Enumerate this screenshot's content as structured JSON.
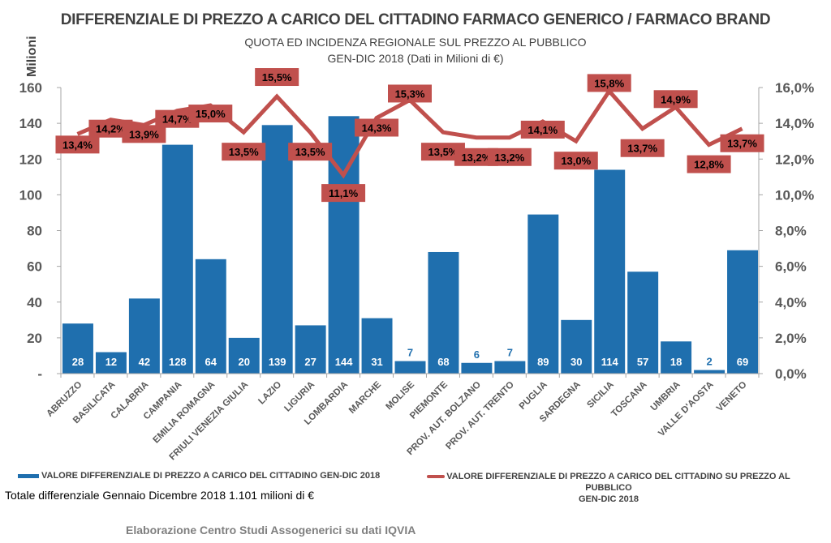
{
  "header": {
    "title": "DIFFERENZIALE DI PREZZO A CARICO DEL CITTADINO FARMACO GENERICO / FARMACO BRAND",
    "subtitle1": "QUOTA ED INCIDENZA REGIONALE SUL PREZZO AL PUBBLICO",
    "subtitle2": "GEN-DIC 2018 (Dati in Milioni di €)"
  },
  "chart_data": {
    "type": "bar",
    "title": "DIFFERENZIALE DI PREZZO A CARICO DEL CITTADINO FARMACO GENERICO / FARMACO BRAND",
    "ylabel": "Milioni",
    "xlabel": "",
    "ylim": [
      0,
      160
    ],
    "y_ticks": [
      "-",
      "20",
      "40",
      "60",
      "80",
      "100",
      "120",
      "140",
      "160"
    ],
    "y_tick_values": [
      0,
      20,
      40,
      60,
      80,
      100,
      120,
      140,
      160
    ],
    "y2lim": [
      0,
      16
    ],
    "y2_ticks": [
      "0,0%",
      "2,0%",
      "4,0%",
      "6,0%",
      "8,0%",
      "10,0%",
      "12,0%",
      "14,0%",
      "16,0%"
    ],
    "y2_tick_values": [
      0,
      2,
      4,
      6,
      8,
      10,
      12,
      14,
      16
    ],
    "grid": false,
    "legend_position": "bottom",
    "categories": [
      "ABRUZZO",
      "BASILICATA",
      "CALABRIA",
      "CAMPANIA",
      "EMILIA ROMAGNA",
      "FRIULI VENEZIA GIULIA",
      "LAZIO",
      "LIGURIA",
      "LOMBARDIA",
      "MARCHE",
      "MOLISE",
      "PIEMONTE",
      "PROV. AUT. BOLZANO",
      "PROV. AUT. TRENTO",
      "PUGLIA",
      "SARDEGNA",
      "SICILIA",
      "TOSCANA",
      "UMBRIA",
      "VALLE D'AOSTA",
      "VENETO"
    ],
    "series": [
      {
        "name": "VALORE DIFFERENZIALE DI PREZZO A CARICO DEL CITTADINO GEN-DIC 2018",
        "type": "bar",
        "axis": "left",
        "color": "#1f6fae",
        "values": [
          28,
          12,
          42,
          128,
          64,
          20,
          139,
          27,
          144,
          31,
          7,
          68,
          6,
          7,
          89,
          30,
          114,
          57,
          18,
          2,
          69
        ],
        "labels": [
          "28",
          "12",
          "42",
          "128",
          "64",
          "20",
          "139",
          "27",
          "144",
          "31",
          "7",
          "68",
          "6",
          "7",
          "89",
          "30",
          "114",
          "57",
          "18",
          "2",
          "69"
        ]
      },
      {
        "name": "VALORE DIFFERENZIALE DI PREZZO A CARICO DEL CITTADINO  SU PREZZO AL PUBBLICO GEN-DIC 2018",
        "type": "line",
        "axis": "right",
        "color": "#c0504d",
        "values": [
          13.4,
          14.2,
          13.9,
          14.7,
          15.0,
          13.5,
          15.5,
          13.5,
          11.1,
          14.3,
          15.3,
          13.5,
          13.2,
          13.2,
          14.1,
          13.0,
          15.8,
          13.7,
          14.9,
          12.8,
          13.7
        ],
        "labels": [
          "13,4%",
          "14,2%",
          "13,9%",
          "14,7%",
          "15,0%",
          "13,5%",
          "15,5%",
          "13,5%",
          "11,1%",
          "14,3%",
          "15,3%",
          "13,5%",
          "13,2%",
          "13,2%",
          "14,1%",
          "13,0%",
          "15,8%",
          "13,7%",
          "14,9%",
          "12,8%",
          "13,7%"
        ]
      }
    ]
  },
  "legend": {
    "bar_label": "VALORE DIFFERENZIALE DI PREZZO A CARICO DEL CITTADINO GEN-DIC 2018",
    "line_label_1": "VALORE DIFFERENZIALE DI PREZZO A CARICO DEL CITTADINO  SU PREZZO AL PUBBLICO",
    "line_label_2": "GEN-DIC 2018"
  },
  "footer": {
    "total": "Totale differenziale Gennaio Dicembre 2018 1.101 milioni di €",
    "credit": "Elaborazione Centro Studi Assogenerici su dati IQVIA"
  }
}
